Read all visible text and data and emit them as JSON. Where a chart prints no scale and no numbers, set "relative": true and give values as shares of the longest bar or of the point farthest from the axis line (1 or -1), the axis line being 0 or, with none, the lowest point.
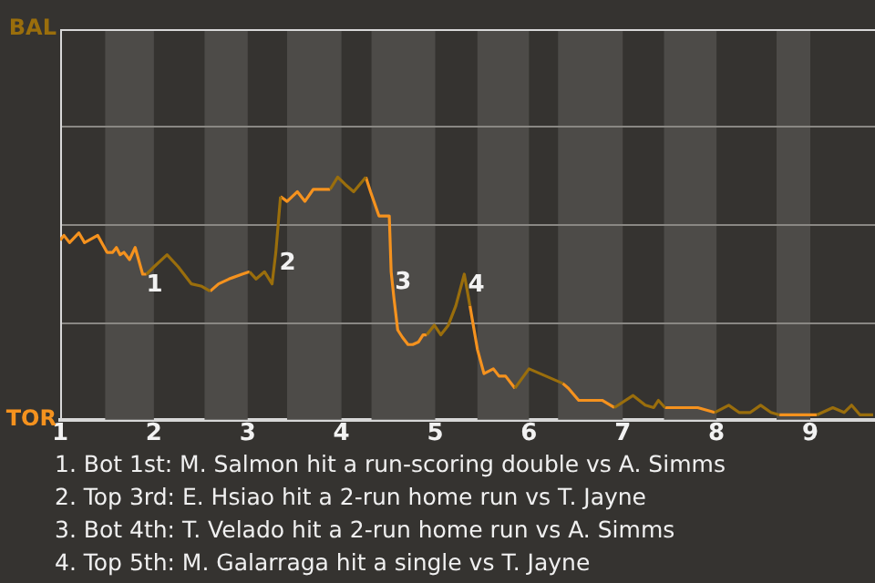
{
  "chart_data": {
    "type": "line",
    "relative": true,
    "x": [
      1,
      1.04,
      1.1,
      1.2,
      1.26,
      1.4,
      1.5,
      1.56,
      1.6,
      1.64,
      1.68,
      1.74,
      1.8,
      1.88,
      1.92,
      2,
      2.14,
      2.26,
      2.4,
      2.51,
      2.6,
      2.69,
      2.8,
      2.94,
      3.02,
      3.09,
      3.18,
      3.26,
      3.3,
      3.35,
      3.42,
      3.53,
      3.61,
      3.7,
      3.88,
      3.96,
      4.04,
      4.13,
      4.26,
      4.31,
      4.4,
      4.51,
      4.53,
      4.56,
      4.6,
      4.65,
      4.71,
      4.76,
      4.82,
      4.87,
      4.91,
      4.99,
      5.06,
      5.14,
      5.22,
      5.31,
      5.37,
      5.45,
      5.52,
      5.62,
      5.68,
      5.75,
      5.85,
      6,
      6.18,
      6.36,
      6.42,
      6.53,
      6.78,
      6.91,
      7.11,
      7.24,
      7.33,
      7.38,
      7.45,
      7.56,
      7.69,
      7.8,
      7.98,
      8.13,
      8.24,
      8.36,
      8.47,
      8.58,
      8.67,
      8.98,
      9.07,
      9.24,
      9.36,
      9.44,
      9.53,
      9.67
    ],
    "series": [
      {
        "name": "BAL",
        "color": "#9a6e0c",
        "values": [
          null,
          null,
          null,
          null,
          null,
          null,
          null,
          null,
          null,
          null,
          null,
          null,
          null,
          null,
          0.6,
          0.63,
          0.68,
          0.63,
          0.56,
          0.55,
          0.53,
          null,
          null,
          null,
          0.61,
          0.58,
          0.61,
          0.56,
          0.69,
          0.92,
          null,
          null,
          null,
          null,
          0.95,
          1,
          0.97,
          0.94,
          1,
          null,
          null,
          null,
          null,
          null,
          null,
          null,
          null,
          null,
          null,
          null,
          0.35,
          0.39,
          0.35,
          0.39,
          0.47,
          0.6,
          0.47,
          null,
          null,
          null,
          null,
          null,
          0.13,
          0.21,
          0.18,
          0.15,
          null,
          null,
          null,
          0.05,
          0.1,
          0.06,
          0.05,
          0.08,
          0.05,
          null,
          null,
          null,
          0.03,
          0.06,
          0.03,
          0.03,
          0.06,
          0.03,
          0.02,
          null,
          0.02,
          0.05,
          0.03,
          0.06,
          0.02,
          0.02
        ]
      },
      {
        "name": "TOR",
        "color": "#f5921e",
        "values": [
          0.74,
          0.76,
          0.73,
          0.77,
          0.73,
          0.76,
          0.69,
          0.69,
          0.71,
          0.68,
          0.69,
          0.66,
          0.71,
          0.6,
          0.6,
          null,
          null,
          null,
          null,
          null,
          0.53,
          0.56,
          0.58,
          0.6,
          0.61,
          null,
          null,
          null,
          null,
          0.92,
          0.9,
          0.94,
          0.9,
          0.95,
          0.95,
          null,
          null,
          null,
          1,
          0.94,
          0.84,
          0.84,
          0.61,
          0.5,
          0.37,
          0.34,
          0.31,
          0.31,
          0.32,
          0.35,
          0.35,
          null,
          null,
          null,
          null,
          null,
          0.47,
          0.29,
          0.19,
          0.21,
          0.18,
          0.18,
          0.13,
          null,
          null,
          0.15,
          0.13,
          0.08,
          0.08,
          0.05,
          null,
          null,
          null,
          null,
          0.05,
          0.05,
          0.05,
          0.05,
          0.03,
          null,
          null,
          null,
          null,
          null,
          0.02,
          0.02,
          0.02,
          null,
          null,
          null,
          null,
          null
        ]
      }
    ],
    "xlim": [
      1,
      9.69
    ],
    "xticks": [
      1,
      2,
      3,
      4,
      5,
      6,
      7,
      8,
      9
    ],
    "ref_lines": [
      {
        "axis": "y",
        "value": 0.4,
        "color": "#8a8884"
      },
      {
        "axis": "y",
        "value": 0.81,
        "color": "#8a8884"
      },
      {
        "axis": "y",
        "value": 1.21,
        "color": "#8a8884"
      }
    ],
    "legend": "left",
    "marker": "none",
    "line_style": "solid",
    "bands": [
      {
        "axis": "x",
        "from": 1.48,
        "to": 2,
        "color": "#4d4b48"
      },
      {
        "axis": "x",
        "from": 2.54,
        "to": 3,
        "color": "#4d4b48"
      },
      {
        "axis": "x",
        "from": 3.42,
        "to": 4,
        "color": "#4d4b48"
      },
      {
        "axis": "x",
        "from": 4.32,
        "to": 5,
        "color": "#4d4b48"
      },
      {
        "axis": "x",
        "from": 5.45,
        "to": 6,
        "color": "#4d4b48"
      },
      {
        "axis": "x",
        "from": 6.31,
        "to": 7,
        "color": "#4d4b48"
      },
      {
        "axis": "x",
        "from": 7.44,
        "to": 8,
        "color": "#4d4b48"
      },
      {
        "axis": "x",
        "from": 8.64,
        "to": 9,
        "color": "#4d4b48"
      }
    ],
    "annotations": [
      {
        "text": "1",
        "x": 1.88,
        "y": 0.6
      },
      {
        "text": "2",
        "x": 3.3,
        "y": 0.69
      },
      {
        "text": "3",
        "x": 4.53,
        "y": 0.61
      },
      {
        "text": "4",
        "x": 5.31,
        "y": 0.6
      },
      "1. Bot 1st: M. Salmon hit a run-scoring double vs A. Simms",
      "2. Top 3rd: E. Hsiao hit a 2-run home run vs T. Jayne",
      "3. Bot 4th: T. Velado hit a 2-run home run vs A. Simms",
      "4. Top 5th: M. Galarraga hit a single vs T. Jayne"
    ]
  }
}
